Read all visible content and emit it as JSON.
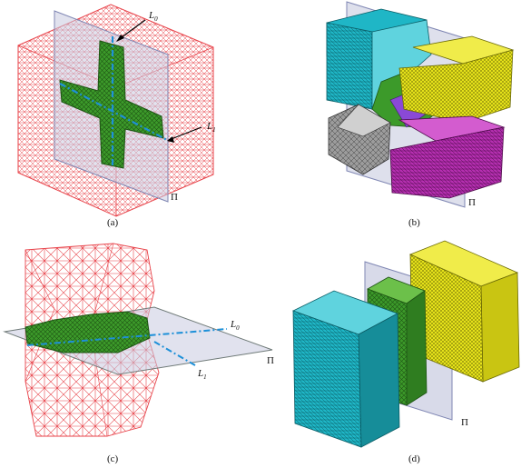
{
  "panels": [
    {
      "caption": "(a)",
      "labels": {
        "l0": "L",
        "l0_sub": "0",
        "l1": "L",
        "l1_sub": "1",
        "pi": "Π"
      }
    },
    {
      "caption": "(b)",
      "labels": {
        "pi": "Π"
      }
    },
    {
      "caption": "(c)",
      "labels": {
        "l0": "L",
        "l0_sub": "0",
        "l1": "L",
        "l1_sub": "1",
        "pi": "Π"
      }
    },
    {
      "caption": "(d)",
      "labels": {
        "pi": "Π"
      }
    }
  ],
  "colors": {
    "mesh_red": "#e8434a",
    "green": "#3c9a2a",
    "cyan": "#1fb6c6",
    "yellow": "#e6e21a",
    "magenta": "#b52fb0",
    "gray": "#8a8a8a",
    "plane": "#c8cbe0",
    "axis_dash": "#1e90d8"
  }
}
